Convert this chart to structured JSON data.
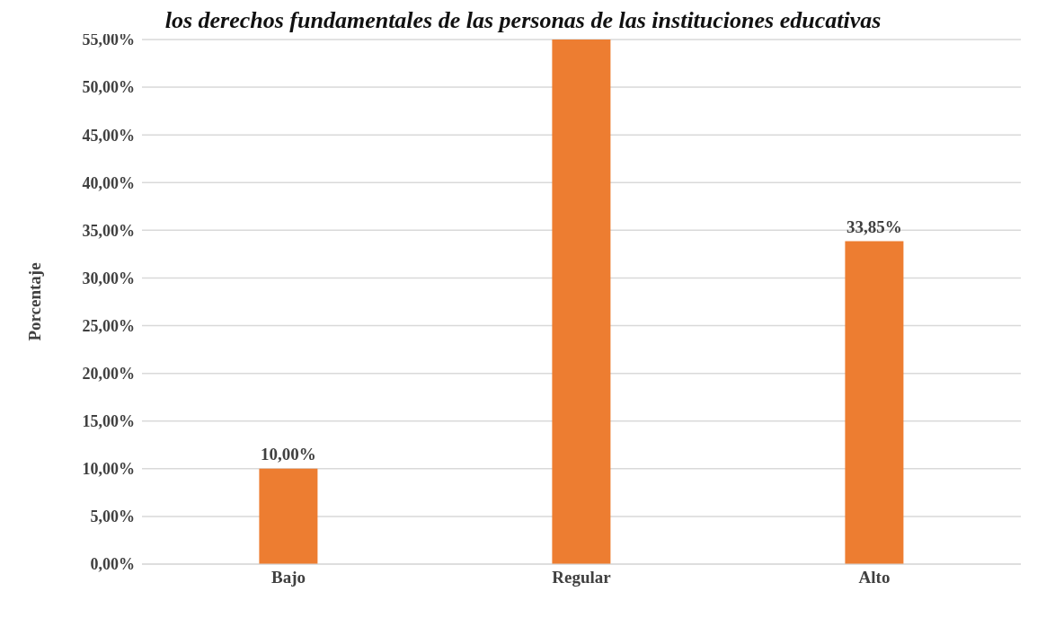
{
  "chart_data": {
    "type": "bar",
    "title": "los derechos fundamentales de las personas de las instituciones educativas",
    "ylabel": "Porcentaje",
    "categories": [
      "Bajo",
      "Regular",
      "Alto"
    ],
    "values": [
      10,
      55,
      33.85
    ],
    "value_labels": [
      "10,00%",
      null,
      "33,85%"
    ],
    "color": "#ed7d31",
    "ylim": [
      0,
      55
    ],
    "yticks": [
      {
        "value": 0,
        "label": "0,00%"
      },
      {
        "value": 5,
        "label": "5,00%"
      },
      {
        "value": 10,
        "label": "10,00%"
      },
      {
        "value": 15,
        "label": "15,00%"
      },
      {
        "value": 20,
        "label": "20,00%"
      },
      {
        "value": 25,
        "label": "25,00%"
      },
      {
        "value": 30,
        "label": "30,00%"
      },
      {
        "value": 35,
        "label": "35,00%"
      },
      {
        "value": 40,
        "label": "40,00%"
      },
      {
        "value": 45,
        "label": "45,00%"
      },
      {
        "value": 50,
        "label": "50,00%"
      },
      {
        "value": 55,
        "label": "55,00%"
      }
    ],
    "grid": "y"
  }
}
